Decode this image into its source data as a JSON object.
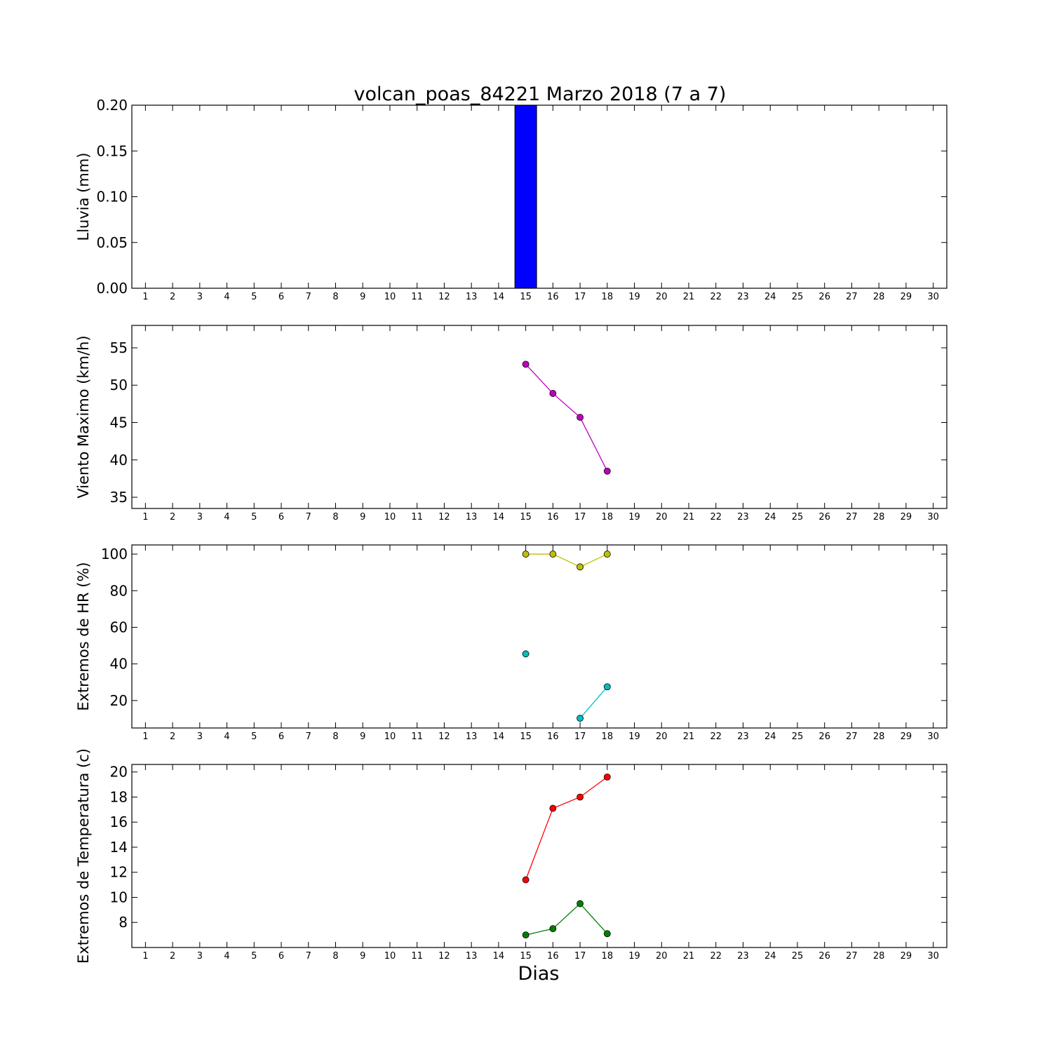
{
  "figure": {
    "title": "volcan_poas_84221 Marzo 2018  (7 a 7)",
    "xlabel": "Dias"
  },
  "chart_data": [
    {
      "type": "bar",
      "ylabel": "Lluvia (mm)",
      "xlim": [
        0.5,
        30.5
      ],
      "ylim": [
        0,
        0.2
      ],
      "yticks": [
        0.0,
        0.05,
        0.1,
        0.15,
        0.2
      ],
      "ytick_labels": [
        "0.00",
        "0.05",
        "0.10",
        "0.15",
        "0.20"
      ],
      "xticks": [
        1,
        2,
        3,
        4,
        5,
        6,
        7,
        8,
        9,
        10,
        11,
        12,
        13,
        14,
        15,
        16,
        17,
        18,
        19,
        20,
        21,
        22,
        23,
        24,
        25,
        26,
        27,
        28,
        29,
        30
      ],
      "bar_width": 0.8,
      "series": [
        {
          "color": "#0000ff",
          "x": [
            15,
            16,
            17,
            18
          ],
          "values": [
            0.2,
            0,
            0,
            0
          ]
        }
      ]
    },
    {
      "type": "line",
      "ylabel": "Viento Maximo (km/h)",
      "xlim": [
        0.5,
        30.5
      ],
      "ylim": [
        33.5,
        58
      ],
      "yticks": [
        35,
        40,
        45,
        50,
        55
      ],
      "ytick_labels": [
        "35",
        "40",
        "45",
        "50",
        "55"
      ],
      "xticks": [
        1,
        2,
        3,
        4,
        5,
        6,
        7,
        8,
        9,
        10,
        11,
        12,
        13,
        14,
        15,
        16,
        17,
        18,
        19,
        20,
        21,
        22,
        23,
        24,
        25,
        26,
        27,
        28,
        29,
        30
      ],
      "series": [
        {
          "color": "#bf00bf",
          "x": [
            15,
            16,
            17,
            18
          ],
          "values": [
            52.8,
            48.9,
            45.7,
            38.5
          ]
        }
      ]
    },
    {
      "type": "line",
      "ylabel": "Extremos de HR (%)",
      "xlim": [
        0.5,
        30.5
      ],
      "ylim": [
        5,
        105
      ],
      "yticks": [
        20,
        40,
        60,
        80,
        100
      ],
      "ytick_labels": [
        "20",
        "40",
        "60",
        "80",
        "100"
      ],
      "xticks": [
        1,
        2,
        3,
        4,
        5,
        6,
        7,
        8,
        9,
        10,
        11,
        12,
        13,
        14,
        15,
        16,
        17,
        18,
        19,
        20,
        21,
        22,
        23,
        24,
        25,
        26,
        27,
        28,
        29,
        30
      ],
      "series": [
        {
          "color": "#bfbf00",
          "x": [
            15,
            16,
            17,
            18
          ],
          "values": [
            100,
            100,
            93,
            100
          ]
        },
        {
          "color": "#00bfbf",
          "x": [
            15,
            16,
            17,
            18
          ],
          "values": [
            45.5,
            null,
            10.3,
            27.5
          ]
        }
      ]
    },
    {
      "type": "line",
      "ylabel": "Extremos de Temperatura (c)",
      "xlim": [
        0.5,
        30.5
      ],
      "ylim": [
        6,
        20.6
      ],
      "yticks": [
        8,
        10,
        12,
        14,
        16,
        18,
        20
      ],
      "ytick_labels": [
        "8",
        "10",
        "12",
        "14",
        "16",
        "18",
        "20"
      ],
      "xticks": [
        1,
        2,
        3,
        4,
        5,
        6,
        7,
        8,
        9,
        10,
        11,
        12,
        13,
        14,
        15,
        16,
        17,
        18,
        19,
        20,
        21,
        22,
        23,
        24,
        25,
        26,
        27,
        28,
        29,
        30
      ],
      "series": [
        {
          "color": "#ff0000",
          "x": [
            15,
            16,
            17,
            18
          ],
          "values": [
            11.4,
            17.1,
            18.0,
            19.6
          ]
        },
        {
          "color": "#007f00",
          "x": [
            15,
            16,
            17,
            18
          ],
          "values": [
            7.0,
            7.5,
            9.5,
            7.1
          ]
        }
      ]
    }
  ]
}
